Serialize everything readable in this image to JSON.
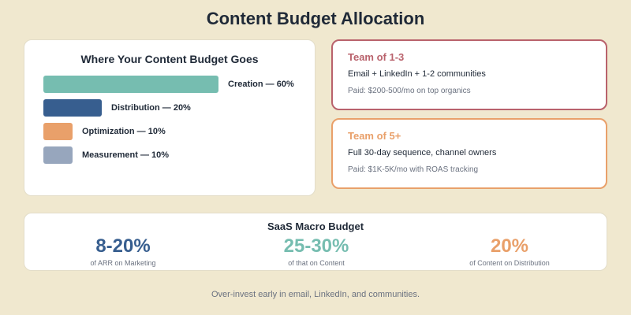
{
  "page": {
    "title": "Content Budget Allocation"
  },
  "budget_card": {
    "title": "Where Your Content Budget Goes",
    "items": [
      {
        "label": "Creation — 60%",
        "percent": 60,
        "color": "#76bdb0"
      },
      {
        "label": "Distribution — 20%",
        "percent": 20,
        "color": "#375e8f"
      },
      {
        "label": "Optimization — 10%",
        "percent": 10,
        "color": "#e9a06a"
      },
      {
        "label": "Measurement — 10%",
        "percent": 10,
        "color": "#97a6bd"
      }
    ]
  },
  "teams": [
    {
      "title": "Team of 1-3",
      "description": "Email + LinkedIn + 1-2 communities",
      "paid": "Paid: $200-500/mo on top organics",
      "color": "#b9626c"
    },
    {
      "title": "Team of 5+",
      "description": "Full 30-day sequence, channel owners",
      "paid": "Paid: $1K-5K/mo with ROAS tracking",
      "color": "#e9a06a"
    }
  ],
  "macro": {
    "title": "SaaS Macro Budget",
    "stats": [
      {
        "value": "8-20%",
        "label": "of ARR on Marketing",
        "color": "#375e8f"
      },
      {
        "value": "25-30%",
        "label": "of that on Content",
        "color": "#76bdb0"
      },
      {
        "value": "20%",
        "label": "of Content on Distribution",
        "color": "#e9a06a"
      }
    ]
  },
  "footer": {
    "text": "Over-invest early in email, LinkedIn, and communities."
  }
}
